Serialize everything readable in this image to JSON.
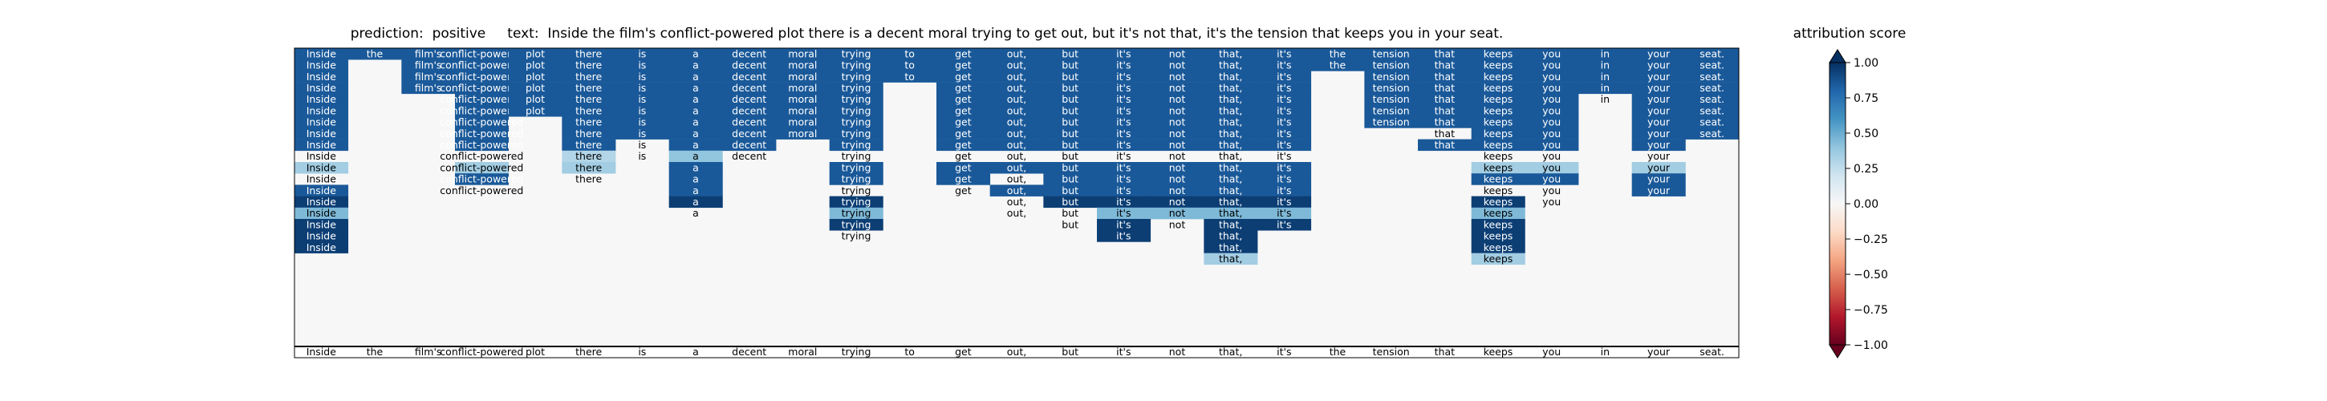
{
  "chart_data": {
    "type": "heatmap",
    "title": {
      "prediction_label": "prediction:",
      "prediction_value": "positive",
      "text_label": "text:",
      "text_value": "Inside the film's conflict-powered plot there is a decent moral trying to get out, but it's not that, it's the tension that keeps you in your seat."
    },
    "tokens": [
      "Inside",
      "the",
      "film's",
      "conflict-powered",
      "plot",
      "there",
      "is",
      "a",
      "decent",
      "moral",
      "trying",
      "to",
      "get",
      "out,",
      "but",
      "it's",
      "not",
      "that,",
      "it's",
      "the",
      "tension",
      "that",
      "keeps",
      "you",
      "in",
      "your",
      "seat."
    ],
    "colorbar": {
      "label": "attribution score",
      "min": -1.0,
      "max": 1.0,
      "ticks": [
        "1.00",
        "0.75",
        "0.50",
        "0.25",
        "0.00",
        "−0.25",
        "−0.50",
        "−0.75",
        "−1.00"
      ],
      "cmap": "RdBu"
    },
    "rows": [
      {
        "present": [
          0,
          1,
          2,
          3,
          4,
          5,
          6,
          7,
          8,
          9,
          10,
          11,
          12,
          13,
          14,
          15,
          16,
          17,
          18,
          19,
          20,
          21,
          22,
          23,
          24,
          25,
          26
        ],
        "scores": {
          "0": 0.85,
          "1": 0.85,
          "2": 0.85,
          "3": 0.85,
          "4": 0.85,
          "5": 0.85,
          "6": 0.85,
          "7": 0.85,
          "8": 0.85,
          "9": 0.85,
          "10": 0.85,
          "11": 0.85,
          "12": 0.85,
          "13": 0.85,
          "14": 0.85,
          "15": 0.85,
          "16": 0.85,
          "17": 0.85,
          "18": 0.85,
          "19": 0.85,
          "20": 0.85,
          "21": 0.85,
          "22": 0.85,
          "23": 0.85,
          "24": 0.85,
          "25": 0.85,
          "26": 0.85
        }
      },
      {
        "present": [
          0,
          2,
          3,
          4,
          5,
          6,
          7,
          8,
          9,
          10,
          11,
          12,
          13,
          14,
          15,
          16,
          17,
          18,
          19,
          20,
          21,
          22,
          23,
          24,
          25,
          26
        ],
        "scores": {
          "0": 0.85,
          "2": 0.85,
          "3": 0.85,
          "4": 0.85,
          "5": 0.85,
          "6": 0.85,
          "7": 0.85,
          "8": 0.85,
          "9": 0.85,
          "10": 0.85,
          "11": 0.85,
          "12": 0.85,
          "13": 0.85,
          "14": 0.85,
          "15": 0.85,
          "16": 0.85,
          "17": 0.85,
          "18": 0.85,
          "19": 0.85,
          "20": 0.85,
          "21": 0.85,
          "22": 0.85,
          "23": 0.85,
          "24": 0.85,
          "25": 0.85,
          "26": 0.85
        }
      },
      {
        "present": [
          0,
          2,
          3,
          4,
          5,
          6,
          7,
          8,
          9,
          10,
          11,
          12,
          13,
          14,
          15,
          16,
          17,
          18,
          20,
          21,
          22,
          23,
          24,
          25,
          26
        ],
        "scores": {
          "0": 0.85,
          "2": 0.85,
          "3": 0.85,
          "4": 0.85,
          "5": 0.85,
          "6": 0.85,
          "7": 0.85,
          "8": 0.85,
          "9": 0.85,
          "10": 0.85,
          "11": 0.85,
          "12": 0.85,
          "13": 0.85,
          "14": 0.85,
          "15": 0.85,
          "16": 0.85,
          "17": 0.85,
          "18": 0.85,
          "20": 0.85,
          "21": 0.85,
          "22": 0.85,
          "23": 0.85,
          "24": 0.85,
          "25": 0.85,
          "26": 0.85
        }
      },
      {
        "present": [
          0,
          2,
          3,
          4,
          5,
          6,
          7,
          8,
          9,
          10,
          12,
          13,
          14,
          15,
          16,
          17,
          18,
          20,
          21,
          22,
          23,
          24,
          25,
          26
        ],
        "scores": {
          "0": 0.85,
          "2": 0.85,
          "3": 0.85,
          "4": 0.85,
          "5": 0.85,
          "6": 0.85,
          "7": 0.85,
          "8": 0.85,
          "9": 0.85,
          "10": 0.85,
          "12": 0.85,
          "13": 0.85,
          "14": 0.85,
          "15": 0.85,
          "16": 0.85,
          "17": 0.85,
          "18": 0.85,
          "20": 0.85,
          "21": 0.85,
          "22": 0.85,
          "23": 0.85,
          "24": 0.85,
          "25": 0.85,
          "26": 0.85
        }
      },
      {
        "present": [
          0,
          3,
          4,
          5,
          6,
          7,
          8,
          9,
          10,
          12,
          13,
          14,
          15,
          16,
          17,
          18,
          20,
          21,
          22,
          23,
          24,
          25,
          26
        ],
        "scores": {
          "0": 0.85,
          "3": 0.85,
          "4": 0.85,
          "5": 0.85,
          "6": 0.85,
          "7": 0.85,
          "8": 0.85,
          "9": 0.85,
          "10": 0.85,
          "12": 0.85,
          "13": 0.85,
          "14": 0.85,
          "15": 0.85,
          "16": 0.85,
          "17": 0.85,
          "18": 0.85,
          "20": 0.85,
          "21": 0.85,
          "22": 0.85,
          "23": 0.85,
          "25": 0.85,
          "26": 0.85
        }
      },
      {
        "present": [
          0,
          3,
          4,
          5,
          6,
          7,
          8,
          9,
          10,
          12,
          13,
          14,
          15,
          16,
          17,
          18,
          20,
          21,
          22,
          23,
          25,
          26
        ],
        "scores": {
          "0": 0.85,
          "3": 0.85,
          "4": 0.85,
          "5": 0.85,
          "6": 0.85,
          "7": 0.85,
          "8": 0.85,
          "9": 0.85,
          "10": 0.85,
          "12": 0.85,
          "13": 0.85,
          "14": 0.85,
          "15": 0.85,
          "16": 0.85,
          "17": 0.85,
          "18": 0.85,
          "20": 0.85,
          "21": 0.85,
          "22": 0.85,
          "23": 0.85,
          "25": 0.85,
          "26": 0.85
        }
      },
      {
        "present": [
          0,
          3,
          5,
          6,
          7,
          8,
          9,
          10,
          12,
          13,
          14,
          15,
          16,
          17,
          18,
          20,
          21,
          22,
          23,
          25,
          26
        ],
        "scores": {
          "0": 0.85,
          "3": 0.85,
          "5": 0.85,
          "6": 0.85,
          "7": 0.85,
          "8": 0.85,
          "9": 0.85,
          "10": 0.85,
          "12": 0.85,
          "13": 0.85,
          "14": 0.85,
          "15": 0.85,
          "16": 0.85,
          "17": 0.85,
          "18": 0.85,
          "20": 0.85,
          "21": 0.85,
          "22": 0.85,
          "23": 0.85,
          "25": 0.85,
          "26": 0.85
        }
      },
      {
        "present": [
          0,
          3,
          5,
          6,
          7,
          8,
          9,
          10,
          12,
          13,
          14,
          15,
          16,
          17,
          18,
          21,
          22,
          23,
          25,
          26
        ],
        "scores": {
          "0": 0.85,
          "3": 0.85,
          "5": 0.85,
          "6": 0.85,
          "7": 0.85,
          "8": 0.85,
          "9": 0.85,
          "10": 0.85,
          "12": 0.85,
          "13": 0.85,
          "14": 0.85,
          "15": 0.85,
          "16": 0.85,
          "17": 0.85,
          "18": 0.85,
          "22": 0.85,
          "23": 0.85,
          "25": 0.85,
          "26": 0.85
        }
      },
      {
        "present": [
          0,
          3,
          5,
          6,
          7,
          8,
          10,
          12,
          13,
          14,
          15,
          16,
          17,
          18,
          21,
          22,
          23,
          25
        ],
        "scores": {
          "0": 0.85,
          "3": 0.85,
          "5": 0.85,
          "7": 0.85,
          "8": 0.85,
          "10": 0.85,
          "12": 0.85,
          "13": 0.85,
          "14": 0.85,
          "15": 0.85,
          "16": 0.85,
          "17": 0.85,
          "18": 0.85,
          "21": 0.85,
          "22": 0.85,
          "23": 0.85,
          "25": 0.85
        }
      },
      {
        "present": [
          0,
          3,
          5,
          6,
          7,
          8,
          10,
          12,
          13,
          14,
          15,
          16,
          17,
          18,
          22,
          23,
          25
        ],
        "scores": {
          "5": 0.3,
          "7": 0.4
        }
      },
      {
        "present": [
          0,
          3,
          5,
          7,
          10,
          12,
          13,
          14,
          15,
          16,
          17,
          18,
          22,
          23,
          25
        ],
        "scores": {
          "0": 0.35,
          "3": 0.35,
          "5": 0.35,
          "7": 0.85,
          "10": 0.85,
          "12": 0.85,
          "13": 0.85,
          "14": 0.85,
          "15": 0.85,
          "16": 0.85,
          "17": 0.85,
          "18": 0.85,
          "22": 0.35,
          "23": 0.35,
          "25": 0.35
        }
      },
      {
        "present": [
          0,
          3,
          5,
          7,
          10,
          12,
          13,
          14,
          15,
          16,
          17,
          18,
          22,
          23,
          25
        ],
        "scores": {
          "3": 0.85,
          "7": 0.85,
          "10": 0.85,
          "12": 0.85,
          "14": 0.85,
          "15": 0.85,
          "16": 0.85,
          "17": 0.85,
          "18": 0.85,
          "22": 0.85,
          "23": 0.85,
          "25": 0.85
        }
      },
      {
        "present": [
          0,
          3,
          7,
          10,
          12,
          13,
          14,
          15,
          16,
          17,
          18,
          22,
          23,
          25
        ],
        "scores": {
          "0": 0.85,
          "7": 0.85,
          "13": 0.85,
          "14": 0.85,
          "15": 0.85,
          "16": 0.85,
          "17": 0.85,
          "18": 0.85,
          "25": 0.85
        }
      },
      {
        "present": [
          0,
          7,
          10,
          13,
          14,
          15,
          16,
          17,
          18,
          22,
          23
        ],
        "scores": {
          "0": 0.95,
          "7": 0.95,
          "10": 0.95,
          "14": 0.95,
          "15": 0.95,
          "16": 0.95,
          "17": 0.95,
          "18": 0.95,
          "22": 0.95
        }
      },
      {
        "present": [
          0,
          7,
          10,
          13,
          14,
          15,
          16,
          17,
          18,
          22
        ],
        "scores": {
          "0": 0.45,
          "10": 0.45,
          "15": 0.45,
          "16": 0.45,
          "17": 0.45,
          "18": 0.45,
          "22": 0.45
        }
      },
      {
        "present": [
          0,
          10,
          14,
          15,
          16,
          17,
          18,
          22
        ],
        "scores": {
          "0": 0.95,
          "10": 0.95,
          "15": 0.95,
          "17": 0.95,
          "18": 0.95,
          "22": 0.95
        }
      },
      {
        "present": [
          0,
          10,
          15,
          17,
          22
        ],
        "scores": {
          "0": 0.95,
          "15": 0.95,
          "17": 0.95,
          "22": 0.95
        }
      },
      {
        "present": [
          0,
          17,
          22
        ],
        "scores": {
          "0": 0.95,
          "17": 0.95,
          "22": 0.95
        }
      },
      {
        "present": [
          17,
          22
        ],
        "scores": {
          "17": 0.35,
          "22": 0.35
        }
      }
    ]
  }
}
